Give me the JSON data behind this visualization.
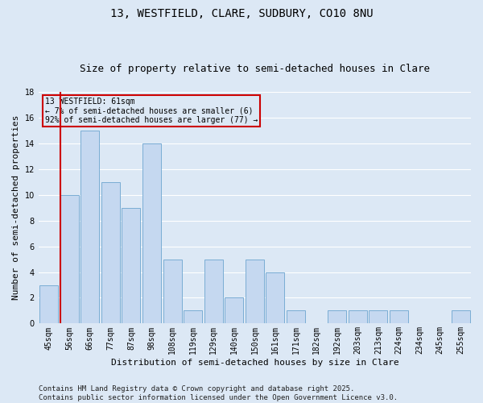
{
  "title": "13, WESTFIELD, CLARE, SUDBURY, CO10 8NU",
  "subtitle": "Size of property relative to semi-detached houses in Clare",
  "xlabel": "Distribution of semi-detached houses by size in Clare",
  "ylabel": "Number of semi-detached properties",
  "categories": [
    "45sqm",
    "56sqm",
    "66sqm",
    "77sqm",
    "87sqm",
    "98sqm",
    "108sqm",
    "119sqm",
    "129sqm",
    "140sqm",
    "150sqm",
    "161sqm",
    "171sqm",
    "182sqm",
    "192sqm",
    "203sqm",
    "213sqm",
    "224sqm",
    "234sqm",
    "245sqm",
    "255sqm"
  ],
  "values": [
    3,
    10,
    15,
    11,
    9,
    14,
    5,
    1,
    5,
    2,
    5,
    4,
    1,
    0,
    1,
    1,
    1,
    1,
    0,
    0,
    1
  ],
  "bar_color": "#c5d8f0",
  "bar_edge_color": "#7aadd4",
  "vline_color": "#cc0000",
  "annotation_title": "13 WESTFIELD: 61sqm",
  "annotation_line1": "← 7% of semi-detached houses are smaller (6)",
  "annotation_line2": "92% of semi-detached houses are larger (77) →",
  "annotation_box_color": "#cc0000",
  "ylim": [
    0,
    18
  ],
  "yticks": [
    0,
    2,
    4,
    6,
    8,
    10,
    12,
    14,
    16,
    18
  ],
  "background_color": "#dce8f5",
  "grid_color": "#ffffff",
  "footer": "Contains HM Land Registry data © Crown copyright and database right 2025.\nContains public sector information licensed under the Open Government Licence v3.0.",
  "title_fontsize": 10,
  "subtitle_fontsize": 9,
  "axis_label_fontsize": 8,
  "tick_fontsize": 7,
  "footer_fontsize": 6.5
}
